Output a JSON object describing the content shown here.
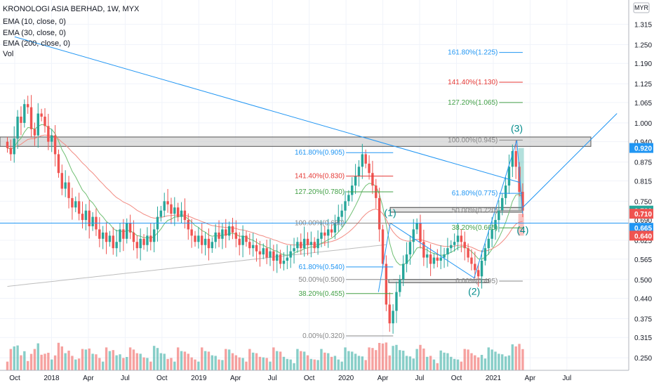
{
  "legend": {
    "title": "KRONOLOGI ASIA BERHAD, 1W, MYX",
    "indicators": [
      "EMA (10, close, 0)",
      "EMA (30, close, 0)",
      "EMA (200, close, 0)",
      "Vol"
    ]
  },
  "currency_label": "MYR",
  "colors": {
    "up": "#26a69a",
    "down": "#ef5350",
    "ema10": "#6fbf73",
    "ema30": "#f28b82",
    "ema200": "#bdbdbd",
    "trend": "#2196f3",
    "fib_blue": "#2196f3",
    "fib_red": "#e53935",
    "fib_green": "#43a047",
    "fib_gray": "#888888",
    "wave": "#008b8b"
  },
  "chart_data": {
    "type": "candlestick",
    "title": "KRONOLOGI ASIA BERHAD, 1W, MYX",
    "y_axis_ticks": [
      1.315,
      1.25,
      1.19,
      1.125,
      1.065,
      1.0,
      0.94,
      0.875,
      0.815,
      0.75,
      0.69,
      0.625,
      0.565,
      0.5,
      0.44,
      0.375,
      0.315,
      0.25
    ],
    "y_range": [
      0.21,
      1.37
    ],
    "x_axis_labels": [
      "Oct",
      "2018",
      "Apr",
      "Jul",
      "Oct",
      "2019",
      "Apr",
      "Jul",
      "Oct",
      "2020",
      "Apr",
      "Jul",
      "Oct",
      "2021",
      "Apr",
      "Jul"
    ],
    "price_badges": [
      {
        "label": "0.920",
        "value": 0.92,
        "color": "#2196f3"
      },
      {
        "label": "0.720",
        "value": 0.72,
        "color": "#26a69a"
      },
      {
        "label": "0.710",
        "value": 0.71,
        "color": "#ef5350"
      },
      {
        "label": "0.665",
        "value": 0.665,
        "color": "#2196f3"
      },
      {
        "label": "0.640",
        "value": 0.64,
        "color": "#ef5350"
      }
    ],
    "resistance_zone": [
      0.925,
      0.955
    ],
    "support_zones": [
      [
        0.715,
        0.73
      ],
      [
        0.49,
        0.5
      ]
    ],
    "horizontal_line": 0.68,
    "fib_extension_1": [
      {
        "label": "161.80%(0.905)",
        "value": 0.905,
        "color": "#2196f3"
      },
      {
        "label": "141.40%(0.830)",
        "value": 0.83,
        "color": "#e53935"
      },
      {
        "label": "127.20%(0.780)",
        "value": 0.78,
        "color": "#43a047"
      },
      {
        "label": "100.00%(0.680)",
        "value": 0.68,
        "color": "#888888"
      },
      {
        "label": "61.80%(0.540)",
        "value": 0.54,
        "color": "#2196f3"
      },
      {
        "label": "50.00%(0.500)",
        "value": 0.5,
        "color": "#888888"
      },
      {
        "label": "38.20%(0.455)",
        "value": 0.455,
        "color": "#43a047"
      },
      {
        "label": "0.00%(0.320)",
        "value": 0.32,
        "color": "#888888"
      }
    ],
    "fib_extension_2": [
      {
        "label": "161.80%(1.225)",
        "value": 1.225,
        "color": "#2196f3"
      },
      {
        "label": "141.40%(1.130)",
        "value": 1.13,
        "color": "#e53935"
      },
      {
        "label": "127.20%(1.065)",
        "value": 1.065,
        "color": "#43a047"
      },
      {
        "label": "100.00%(0.945)",
        "value": 0.945,
        "color": "#888888"
      },
      {
        "label": "61.80%(0.775)",
        "value": 0.775,
        "color": "#2196f3"
      },
      {
        "label": "50.00%(0.720)",
        "value": 0.72,
        "color": "#888888"
      },
      {
        "label": "38.20%(0.665)",
        "value": 0.665,
        "color": "#43a047"
      },
      {
        "label": "0.00%(0.495)",
        "value": 0.495,
        "color": "#888888"
      }
    ],
    "wave_labels": [
      "(1)",
      "(2)",
      "(3)",
      "(4)"
    ],
    "wave_points": [
      {
        "label": "(1)",
        "time": 2020.3,
        "price": 0.68
      },
      {
        "label": "(2)",
        "time": 2020.87,
        "price": 0.505
      },
      {
        "label": "(3)",
        "time": 2021.16,
        "price": 0.945
      },
      {
        "label": "(4)",
        "time": 2021.2,
        "price": 0.71
      }
    ],
    "trendline": {
      "points": [
        [
          2017.75,
          1.275
        ],
        [
          2021.18,
          0.81
        ]
      ]
    },
    "breakout_line": {
      "points": [
        [
          2021.2,
          0.73
        ],
        [
          2021.84,
          1.03
        ]
      ]
    },
    "close_series": [
      0.92,
      0.9,
      0.95,
      1.02,
      1.0,
      1.06,
      1.05,
      0.98,
      0.96,
      1.03,
      1.02,
      0.99,
      0.94,
      0.96,
      0.9,
      0.84,
      0.79,
      0.81,
      0.76,
      0.73,
      0.75,
      0.71,
      0.69,
      0.72,
      0.67,
      0.7,
      0.66,
      0.63,
      0.65,
      0.62,
      0.64,
      0.6,
      0.62,
      0.66,
      0.63,
      0.68,
      0.65,
      0.62,
      0.6,
      0.63,
      0.61,
      0.64,
      0.62,
      0.66,
      0.7,
      0.72,
      0.75,
      0.74,
      0.71,
      0.73,
      0.7,
      0.72,
      0.69,
      0.66,
      0.64,
      0.62,
      0.64,
      0.61,
      0.63,
      0.6,
      0.62,
      0.65,
      0.63,
      0.66,
      0.64,
      0.67,
      0.65,
      0.63,
      0.61,
      0.64,
      0.62,
      0.6,
      0.61,
      0.59,
      0.58,
      0.6,
      0.57,
      0.59,
      0.56,
      0.58,
      0.55,
      0.56,
      0.57,
      0.59,
      0.6,
      0.62,
      0.6,
      0.63,
      0.61,
      0.62,
      0.6,
      0.63,
      0.65,
      0.64,
      0.66,
      0.65,
      0.68,
      0.7,
      0.72,
      0.75,
      0.77,
      0.8,
      0.83,
      0.86,
      0.9,
      0.87,
      0.84,
      0.8,
      0.76,
      0.66,
      0.55,
      0.42,
      0.36,
      0.4,
      0.46,
      0.5,
      0.55,
      0.58,
      0.62,
      0.66,
      0.68,
      0.62,
      0.57,
      0.58,
      0.55,
      0.57,
      0.56,
      0.57,
      0.58,
      0.6,
      0.61,
      0.62,
      0.64,
      0.62,
      0.6,
      0.57,
      0.55,
      0.53,
      0.51,
      0.56,
      0.6,
      0.63,
      0.66,
      0.69,
      0.72,
      0.76,
      0.8,
      0.86,
      0.91,
      0.86,
      0.78,
      0.72
    ],
    "start_time": 2017.7,
    "end_time": 2021.2
  }
}
